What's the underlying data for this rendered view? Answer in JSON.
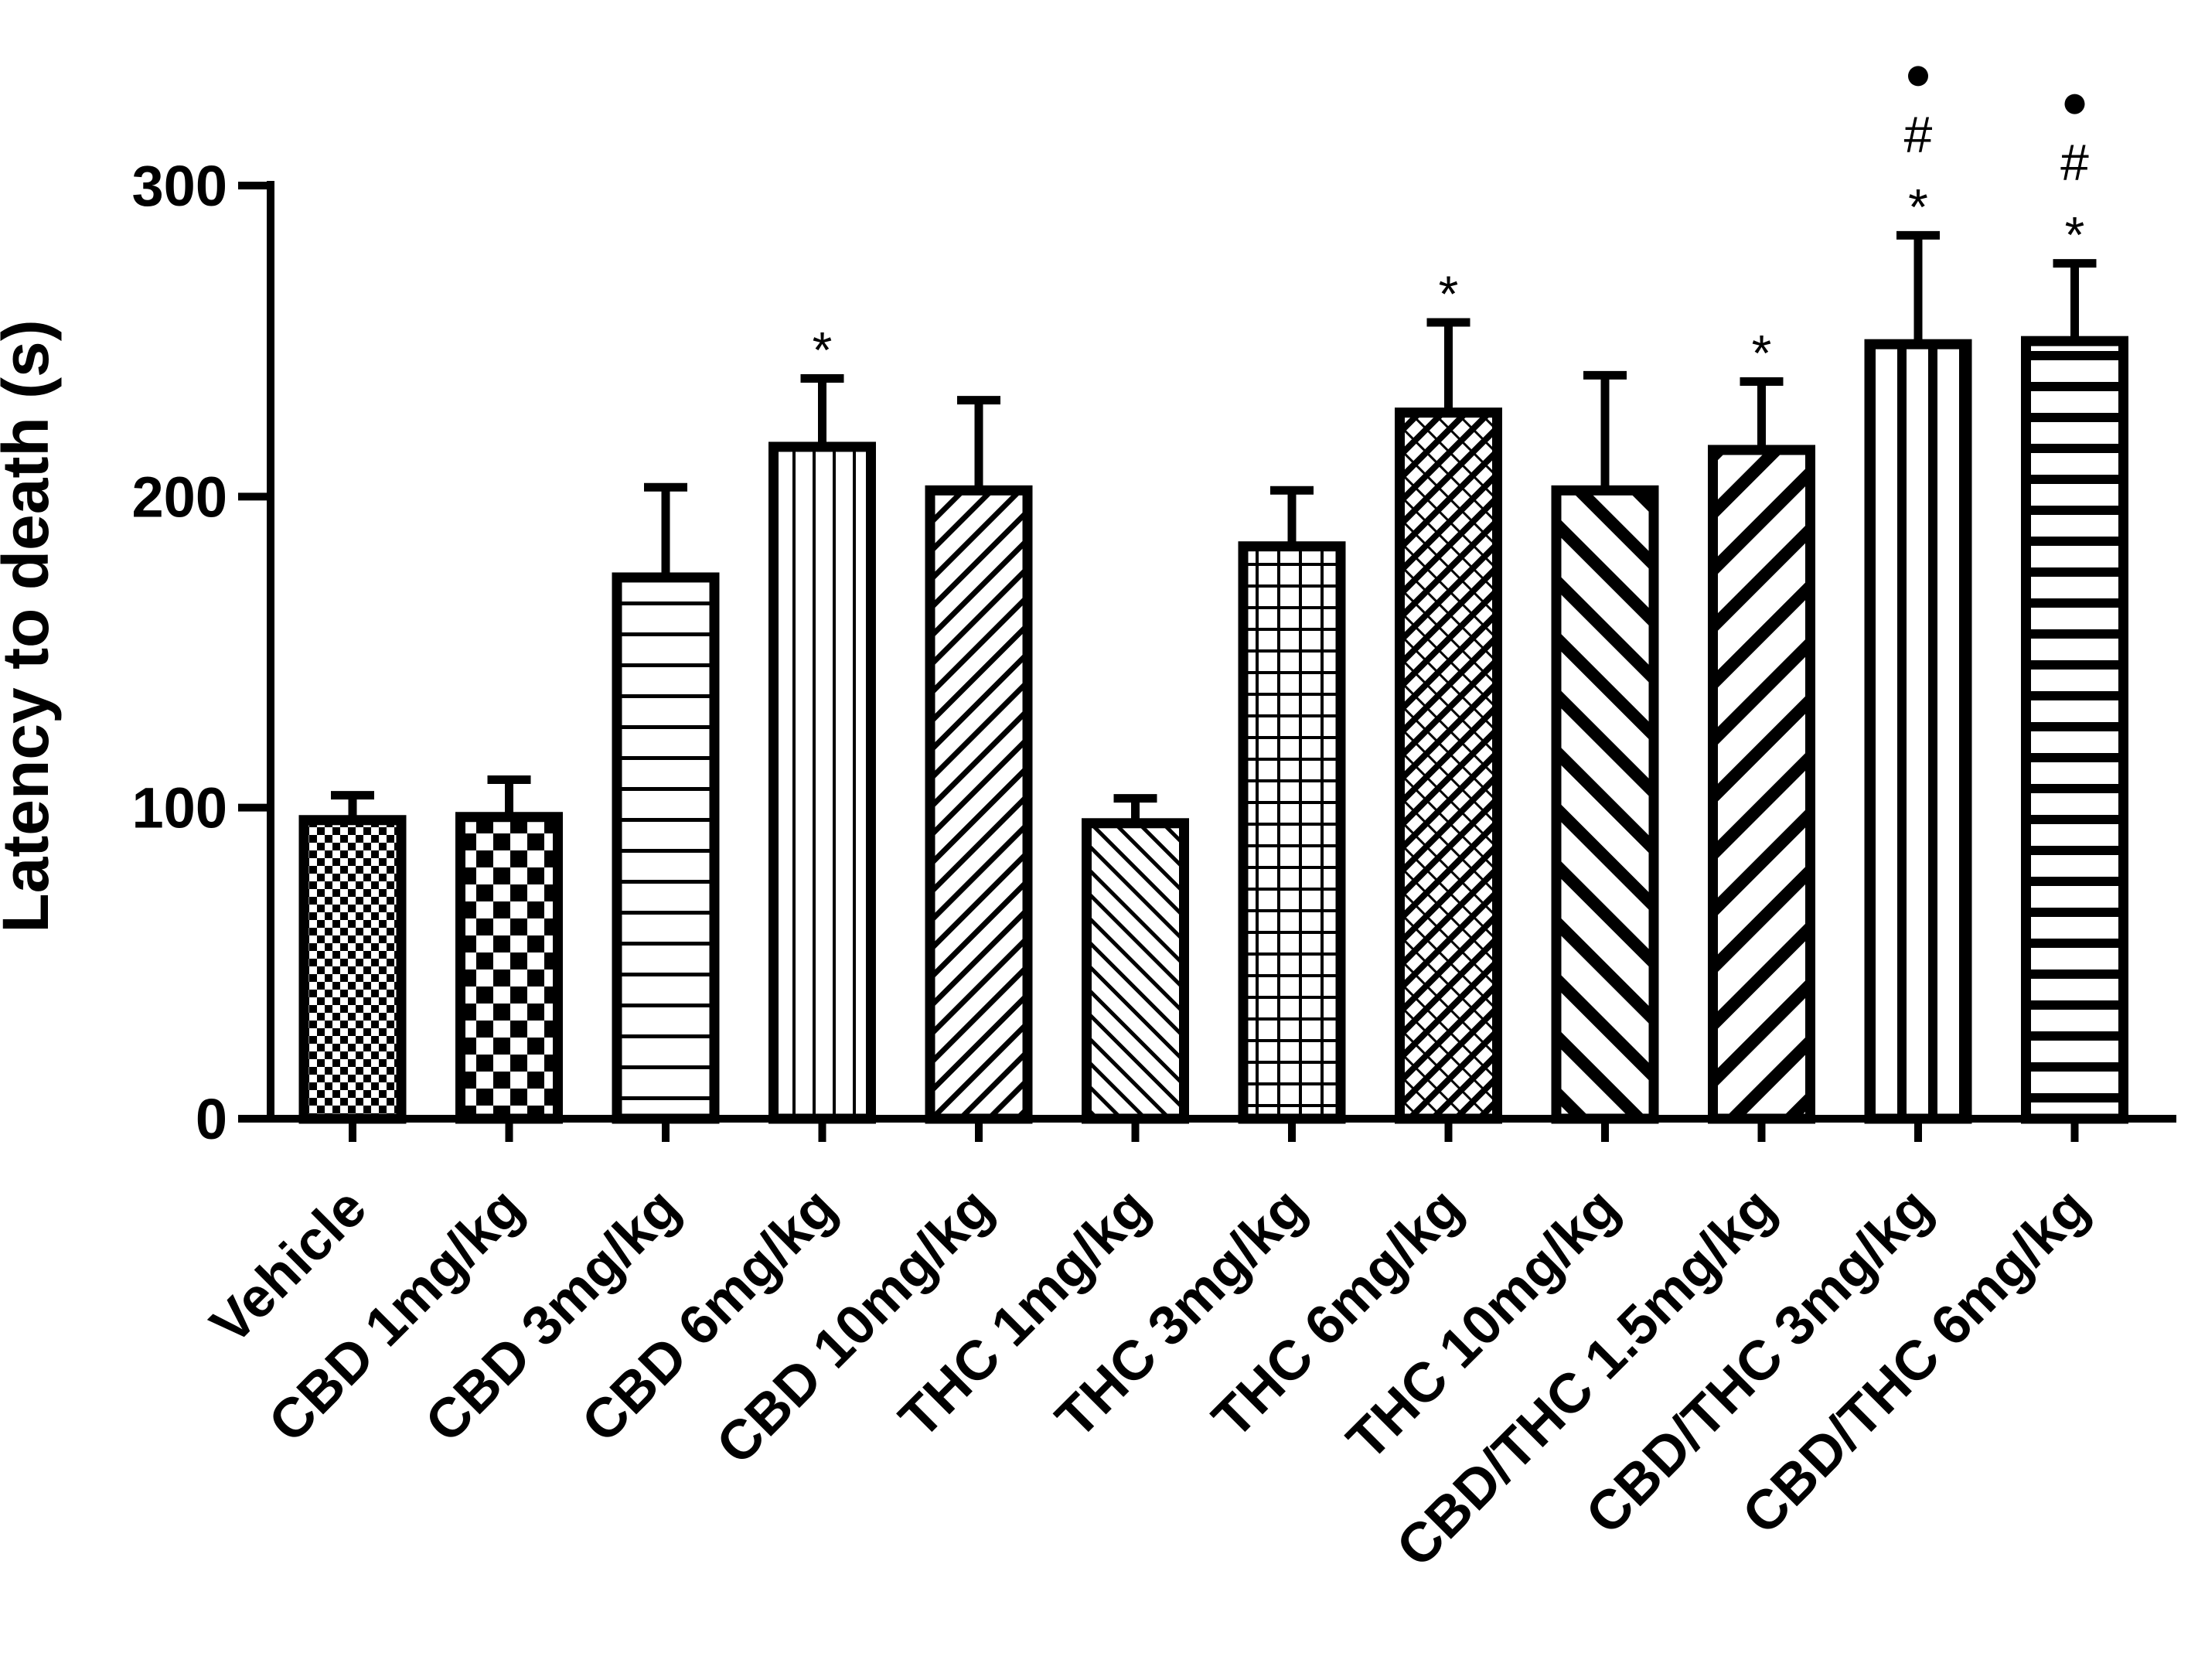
{
  "chart_data": {
    "type": "bar",
    "ylabel": "Latency to death (s)",
    "xlabel": "",
    "ylim": [
      0,
      300
    ],
    "yticks": [
      0,
      100,
      200,
      300
    ],
    "ytick_labels": [
      "0",
      "100",
      "200",
      "300"
    ],
    "grid": false,
    "legend": "none",
    "bars": [
      {
        "category": "Vehicle",
        "value": 96,
        "error": 8,
        "pattern": "checker-fine",
        "markers": []
      },
      {
        "category": "CBD 1mg/kg",
        "value": 97,
        "error": 12,
        "pattern": "checker-coarse",
        "markers": []
      },
      {
        "category": "CBD 3mg/kg",
        "value": 174,
        "error": 29,
        "pattern": "horizontal-lines",
        "markers": []
      },
      {
        "category": "CBD 6mg/kg",
        "value": 216,
        "error": 22,
        "pattern": "vertical-lines",
        "markers": [
          "*"
        ]
      },
      {
        "category": "CBD 10mg/kg",
        "value": 202,
        "error": 29,
        "pattern": "diagonal-up-thin",
        "markers": []
      },
      {
        "category": "THC 1mg/kg",
        "value": 95,
        "error": 8,
        "pattern": "diagonal-down-thin",
        "markers": []
      },
      {
        "category": "THC 3mg/kg",
        "value": 184,
        "error": 18,
        "pattern": "grid",
        "markers": []
      },
      {
        "category": "THC 6mg/kg",
        "value": 227,
        "error": 29,
        "pattern": "crosshatch-diagonal",
        "markers": [
          "*"
        ]
      },
      {
        "category": "THC 10mg/kg",
        "value": 202,
        "error": 37,
        "pattern": "diagonal-down-thick",
        "markers": []
      },
      {
        "category": "CBD/THC 1.5mg/kg",
        "value": 215,
        "error": 22,
        "pattern": "diagonal-up-thick",
        "markers": [
          "*"
        ]
      },
      {
        "category": "CBD/THC 3mg/kg",
        "value": 249,
        "error": 35,
        "pattern": "vertical-thick",
        "markers": [
          "*",
          "#",
          "•"
        ]
      },
      {
        "category": "CBD/THC 6mg/kg",
        "value": 250,
        "error": 25,
        "pattern": "horizontal-thick",
        "markers": [
          "*",
          "#",
          "•"
        ]
      }
    ],
    "colors": {
      "bar_stroke": "#000000",
      "fill": "#ffffff",
      "pattern": "#000000"
    }
  }
}
